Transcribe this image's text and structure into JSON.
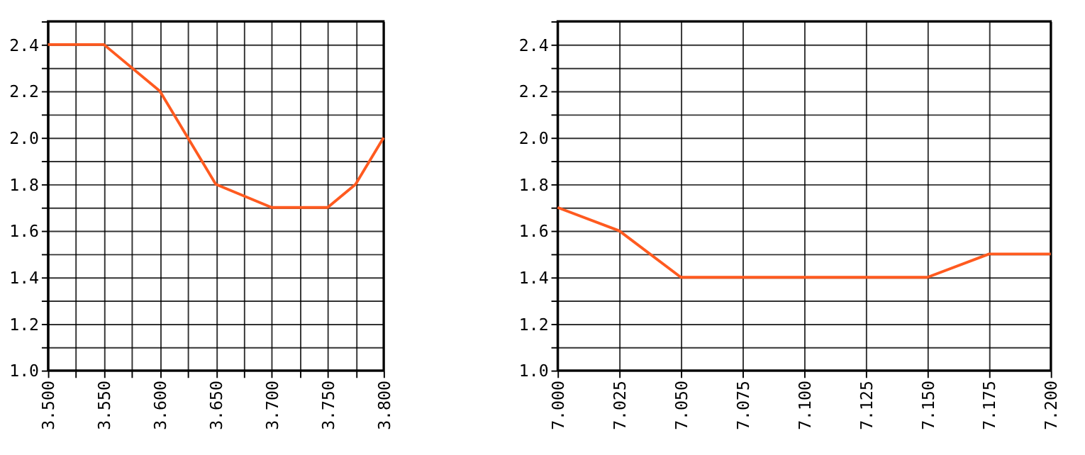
{
  "chart_data": [
    {
      "type": "line",
      "x": [
        3.5,
        3.55,
        3.6,
        3.65,
        3.7,
        3.75,
        3.775,
        3.8
      ],
      "series": [
        {
          "color": "#ff5a1f",
          "values": [
            2.4,
            2.4,
            2.2,
            1.8,
            1.7,
            1.7,
            1.8,
            2.0
          ]
        }
      ],
      "xlim": [
        3.5,
        3.8
      ],
      "xticks": [
        {
          "value": 3.5,
          "label": "3.500"
        },
        {
          "value": 3.525,
          "label": null
        },
        {
          "value": 3.55,
          "label": "3.550"
        },
        {
          "value": 3.575,
          "label": null
        },
        {
          "value": 3.6,
          "label": "3.600"
        },
        {
          "value": 3.625,
          "label": null
        },
        {
          "value": 3.65,
          "label": "3.650"
        },
        {
          "value": 3.675,
          "label": null
        },
        {
          "value": 3.7,
          "label": "3.700"
        },
        {
          "value": 3.725,
          "label": null
        },
        {
          "value": 3.75,
          "label": "3.750"
        },
        {
          "value": 3.775,
          "label": null
        },
        {
          "value": 3.8,
          "label": "3.800"
        }
      ],
      "ylim": [
        1.0,
        2.5
      ],
      "yticks": [
        {
          "value": 1.0,
          "label": "1.0"
        },
        {
          "value": 1.1,
          "label": null
        },
        {
          "value": 1.2,
          "label": "1.2"
        },
        {
          "value": 1.3,
          "label": null
        },
        {
          "value": 1.4,
          "label": "1.4"
        },
        {
          "value": 1.5,
          "label": null
        },
        {
          "value": 1.6,
          "label": "1.6"
        },
        {
          "value": 1.7,
          "label": null
        },
        {
          "value": 1.8,
          "label": "1.8"
        },
        {
          "value": 1.9,
          "label": null
        },
        {
          "value": 2.0,
          "label": "2.0"
        },
        {
          "value": 2.1,
          "label": null
        },
        {
          "value": 2.2,
          "label": "2.2"
        },
        {
          "value": 2.3,
          "label": null
        },
        {
          "value": 2.4,
          "label": "2.4"
        },
        {
          "value": 2.5,
          "label": null
        }
      ],
      "grid": true,
      "marker": "none",
      "line_style": "solid"
    },
    {
      "type": "line",
      "x": [
        7.0,
        7.025,
        7.05,
        7.15,
        7.175,
        7.2
      ],
      "series": [
        {
          "color": "#ff5a1f",
          "values": [
            1.7,
            1.6,
            1.4,
            1.4,
            1.5,
            1.5
          ]
        }
      ],
      "xlim": [
        7.0,
        7.2
      ],
      "xticks": [
        {
          "value": 7.0,
          "label": "7.000"
        },
        {
          "value": 7.025,
          "label": "7.025"
        },
        {
          "value": 7.05,
          "label": "7.050"
        },
        {
          "value": 7.075,
          "label": "7.075"
        },
        {
          "value": 7.1,
          "label": "7.100"
        },
        {
          "value": 7.125,
          "label": "7.125"
        },
        {
          "value": 7.15,
          "label": "7.150"
        },
        {
          "value": 7.175,
          "label": "7.175"
        },
        {
          "value": 7.2,
          "label": "7.200"
        }
      ],
      "ylim": [
        1.0,
        2.5
      ],
      "yticks": [
        {
          "value": 1.0,
          "label": "1.0"
        },
        {
          "value": 1.1,
          "label": null
        },
        {
          "value": 1.2,
          "label": "1.2"
        },
        {
          "value": 1.3,
          "label": null
        },
        {
          "value": 1.4,
          "label": "1.4"
        },
        {
          "value": 1.5,
          "label": null
        },
        {
          "value": 1.6,
          "label": "1.6"
        },
        {
          "value": 1.7,
          "label": null
        },
        {
          "value": 1.8,
          "label": "1.8"
        },
        {
          "value": 1.9,
          "label": null
        },
        {
          "value": 2.0,
          "label": "2.0"
        },
        {
          "value": 2.1,
          "label": null
        },
        {
          "value": 2.2,
          "label": "2.2"
        },
        {
          "value": 2.3,
          "label": null
        },
        {
          "value": 2.4,
          "label": "2.4"
        },
        {
          "value": 2.5,
          "label": null
        }
      ],
      "grid": true,
      "marker": "none",
      "line_style": "solid"
    }
  ]
}
